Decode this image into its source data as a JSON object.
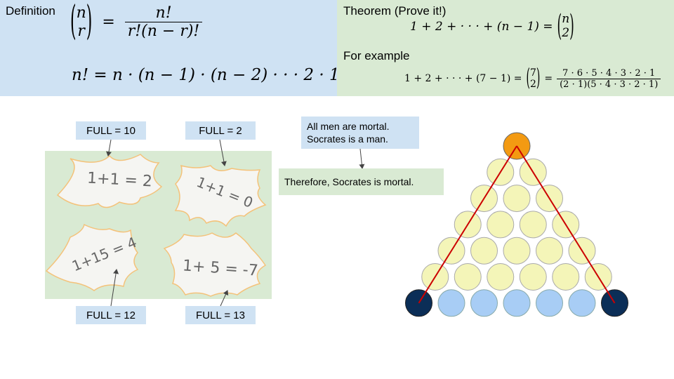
{
  "definition": {
    "label": "Definition",
    "binom_top": "n",
    "binom_bottom": "r",
    "equals": "=",
    "frac_num": "n!",
    "frac_den": "r!(n − r)!",
    "factorial": "n! = n · (n − 1) · (n − 2) · · · 2 · 1"
  },
  "theorem": {
    "label": "Theorem (Prove it!)",
    "lhs": "1 + 2 + · · · + (n − 1) =",
    "binom_top": "n",
    "binom_bottom": "2",
    "example_label": "For example",
    "ex_lhs": "1 + 2 + · · · + (7 − 1) =",
    "ex_binom_top": "7",
    "ex_binom_bottom": "2",
    "ex_equals": "=",
    "ex_num": "7 · 6 · 5 · 4 · 3 · 2 · 1",
    "ex_den": "(2 · 1)(5 · 4 · 3 · 2 · 1)"
  },
  "cards": {
    "tl": {
      "tag": "FULL = 10",
      "text": "1+1 = 2"
    },
    "tr": {
      "tag": "FULL = 2",
      "text": "1+1 = 0"
    },
    "bl": {
      "tag": "FULL = 12",
      "text": "1+15 = 4"
    },
    "br": {
      "tag": "FULL = 13",
      "text": "1+ 5 = -7"
    }
  },
  "syllogism": {
    "premise1": "All men are mortal.",
    "premise2": "Socrates is a man.",
    "conclusion": "Therefore, Socrates is mortal."
  },
  "colors": {
    "blue_panel": "#cfe2f3",
    "green_panel": "#d9ead3",
    "ball_yellow": "#f4f5b8",
    "ball_blue": "#a8cdf5",
    "ball_top": "#f39a12",
    "ball_dark": "#0b2e57",
    "path_red": "#cc0000"
  }
}
